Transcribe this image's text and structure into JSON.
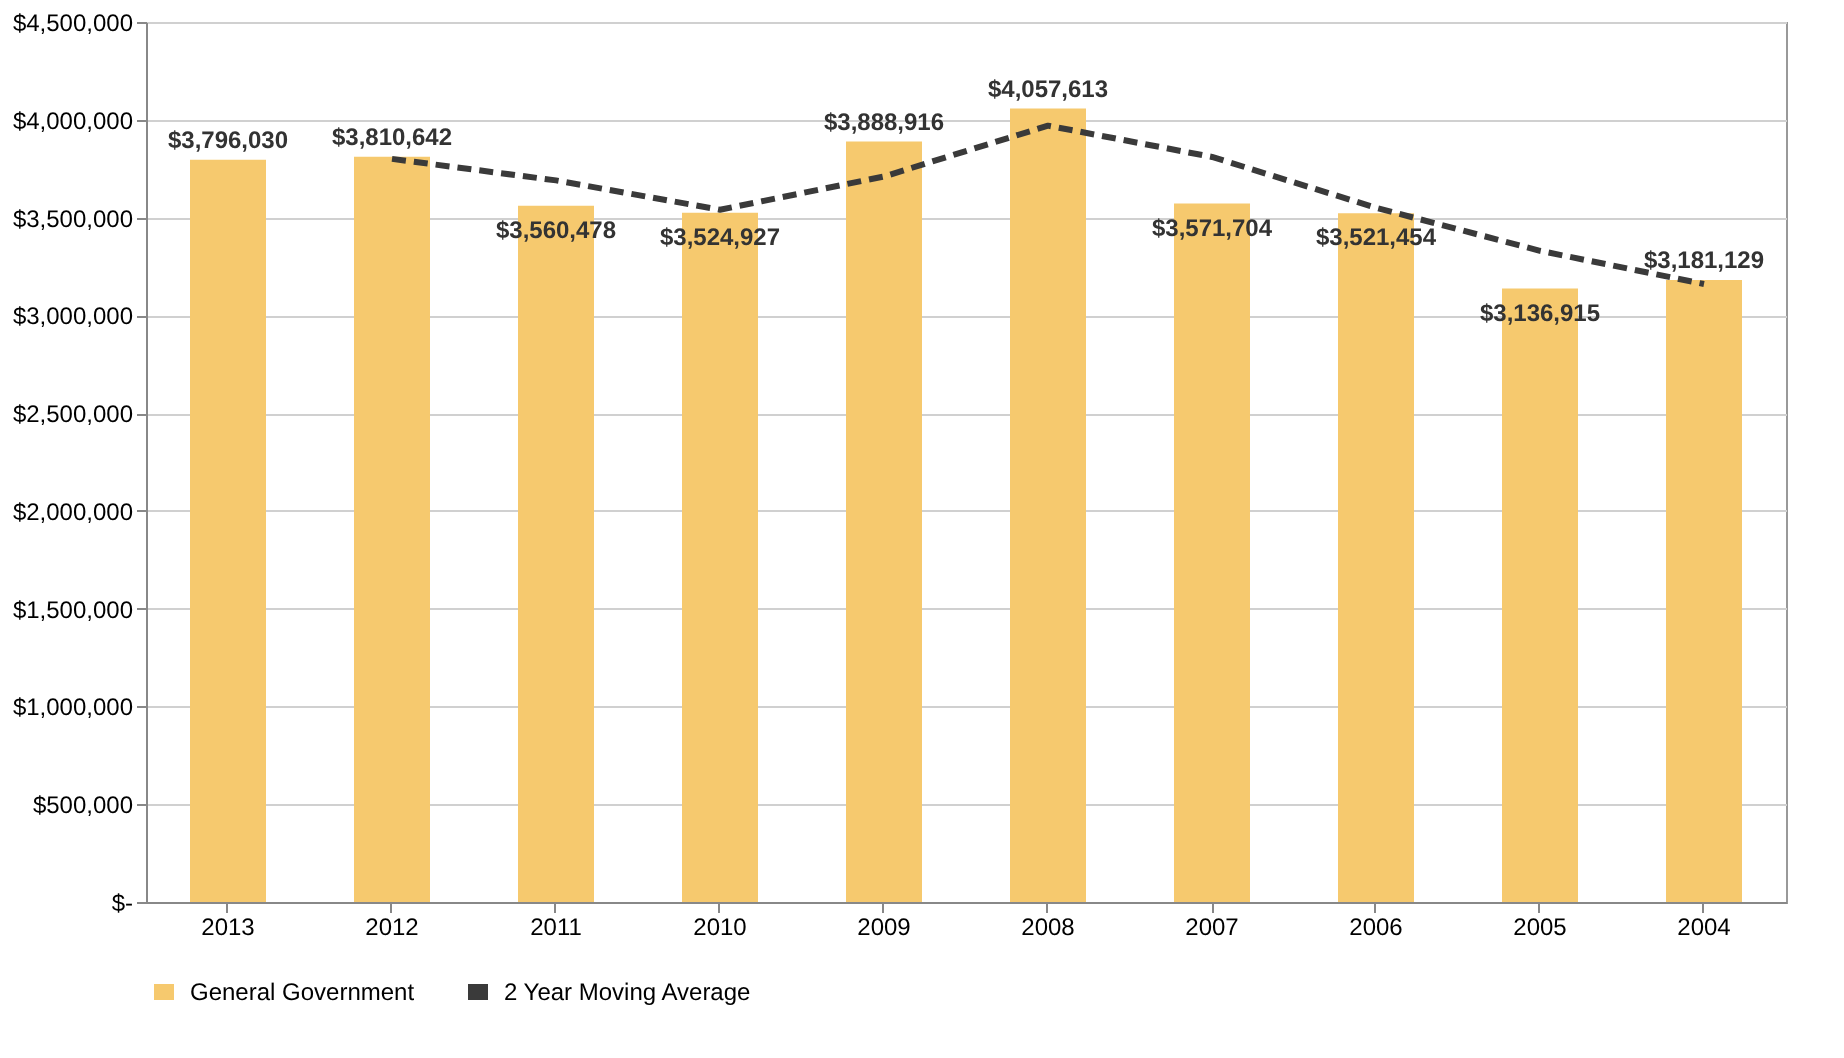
{
  "chart_data": {
    "type": "bar",
    "categories": [
      "2013",
      "2012",
      "2011",
      "2010",
      "2009",
      "2008",
      "2007",
      "2006",
      "2005",
      "2004"
    ],
    "series": [
      {
        "name": "General Government",
        "color": "#f6c96e",
        "values": [
          3796030,
          3810642,
          3560478,
          3524927,
          3888916,
          4057613,
          3571704,
          3521454,
          3136915,
          3181129
        ],
        "value_labels": [
          "$3,796,030",
          "$3,810,642",
          "$3,560,478",
          "$3,524,927",
          "$3,888,916",
          "$4,057,613",
          "$3,571,704",
          "$3,521,454",
          "$3,136,915",
          "$3,181,129"
        ]
      },
      {
        "name": "2 Year Moving Average",
        "type": "line",
        "color": "#3a3a3a",
        "line_style": "dashed",
        "values": [
          null,
          3800000,
          3690000,
          3540000,
          3710000,
          3970000,
          3810000,
          3550000,
          3330000,
          3160000
        ]
      }
    ],
    "ylim": [
      0,
      4500000
    ],
    "yticks": [
      {
        "value": 0,
        "label": "$-"
      },
      {
        "value": 500000,
        "label": "$500,000"
      },
      {
        "value": 1000000,
        "label": "$1,000,000"
      },
      {
        "value": 1500000,
        "label": "$1,500,000"
      },
      {
        "value": 2000000,
        "label": "$2,000,000"
      },
      {
        "value": 2500000,
        "label": "$2,500,000"
      },
      {
        "value": 3000000,
        "label": "$3,000,000"
      },
      {
        "value": 3500000,
        "label": "$3,500,000"
      },
      {
        "value": 4000000,
        "label": "$4,000,000"
      },
      {
        "value": 4500000,
        "label": "$4,500,000"
      }
    ],
    "grid": "y",
    "legend": "bottom"
  }
}
